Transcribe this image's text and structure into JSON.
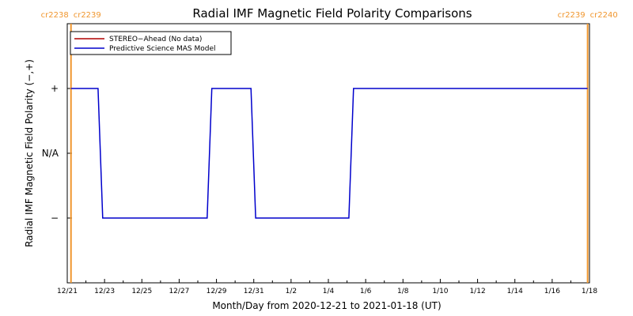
{
  "chart_data": {
    "type": "line",
    "title": "Radial IMF Magnetic Field Polarity Comparisons",
    "xlabel": "Month/Day from 2020-12-21 to 2021-01-18 (UT)",
    "ylabel": "Radial IMF Magnetic Field Polarity (−,+)",
    "x_range_days": [
      0,
      28
    ],
    "x_ticks": [
      {
        "day": 0,
        "label": "12/21"
      },
      {
        "day": 2,
        "label": "12/23"
      },
      {
        "day": 4,
        "label": "12/25"
      },
      {
        "day": 6,
        "label": "12/27"
      },
      {
        "day": 8,
        "label": "12/29"
      },
      {
        "day": 10,
        "label": "12/31"
      },
      {
        "day": 12,
        "label": "1/2"
      },
      {
        "day": 14,
        "label": "1/4"
      },
      {
        "day": 16,
        "label": "1/6"
      },
      {
        "day": 18,
        "label": "1/8"
      },
      {
        "day": 20,
        "label": "1/10"
      },
      {
        "day": 22,
        "label": "1/12"
      },
      {
        "day": 24,
        "label": "1/14"
      },
      {
        "day": 26,
        "label": "1/16"
      },
      {
        "day": 28,
        "label": "1/18"
      }
    ],
    "y_range": [
      -2,
      2
    ],
    "y_ticks": [
      {
        "value": 1,
        "label": "+"
      },
      {
        "value": 0,
        "label": "N/A"
      },
      {
        "value": -1,
        "label": "−"
      }
    ],
    "carrington_markers": [
      {
        "day": 0.2,
        "left": "cr2238",
        "right": "cr2239"
      },
      {
        "day": 27.9,
        "left": "cr2239",
        "right": "cr2240"
      }
    ],
    "legend": [
      {
        "name": "STEREO−Ahead (No data)",
        "color": "#b00000"
      },
      {
        "name": "Predictive Science MAS Model",
        "color": "#0000cc"
      }
    ],
    "series": [
      {
        "name": "Predictive Science MAS Model",
        "color": "#0000cc",
        "points": [
          [
            0.2,
            1
          ],
          [
            1.65,
            1
          ],
          [
            1.9,
            -1
          ],
          [
            7.5,
            -1
          ],
          [
            7.75,
            1
          ],
          [
            9.85,
            1
          ],
          [
            10.1,
            -1
          ],
          [
            15.1,
            -1
          ],
          [
            15.35,
            1
          ],
          [
            27.9,
            1
          ]
        ]
      }
    ],
    "colors": {
      "axis": "#000000",
      "marker": "#f0962e"
    }
  }
}
